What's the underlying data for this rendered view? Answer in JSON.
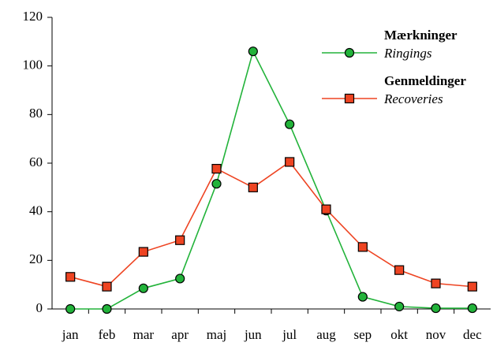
{
  "chart_data": {
    "type": "line",
    "categories": [
      "jan",
      "feb",
      "mar",
      "apr",
      "maj",
      "jun",
      "jul",
      "aug",
      "sep",
      "okt",
      "nov",
      "dec"
    ],
    "series": [
      {
        "name": "Mærkninger",
        "name_en": "Ringings",
        "color": "#22b33a",
        "marker": "circle",
        "values": [
          0,
          0,
          8.5,
          12.5,
          51.5,
          106,
          76,
          40.5,
          5,
          1,
          0.3,
          0.3
        ]
      },
      {
        "name": "Genmeldinger",
        "name_en": "Recoveries",
        "color": "#ee4422",
        "marker": "square",
        "values": [
          13.2,
          9.2,
          23.5,
          28.3,
          57.7,
          50,
          60.5,
          41,
          25.5,
          16,
          10.5,
          9.2
        ]
      }
    ],
    "ylim": [
      0,
      120
    ],
    "yticks": [
      0,
      20,
      40,
      60,
      80,
      100,
      120
    ],
    "grid": false,
    "legend": "upper right"
  }
}
